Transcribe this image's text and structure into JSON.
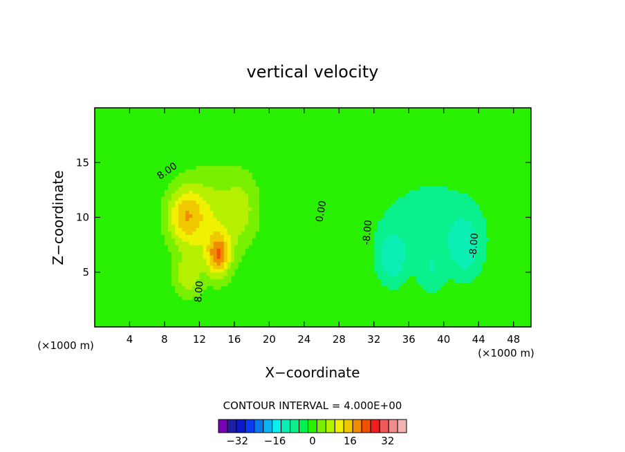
{
  "chart_data": {
    "type": "heatmap",
    "title": "vertical velocity",
    "xlabel": "X−coordinate",
    "ylabel": "Z−coordinate",
    "x_unit": "(×1000 m)",
    "y_unit": "(×1000 m)",
    "xlim": [
      0,
      50
    ],
    "ylim": [
      0,
      20
    ],
    "x_ticks": [
      4,
      8,
      12,
      16,
      20,
      24,
      28,
      32,
      36,
      40,
      44,
      48
    ],
    "y_ticks": [
      5,
      10,
      15
    ],
    "contour_interval_label": "CONTOUR INTERVAL = 4.000E+00",
    "contour_interval": 4,
    "contour_labels": [
      {
        "text": "8.00",
        "x": 8.5,
        "y": 14.0,
        "rotate": -35
      },
      {
        "text": "0.00",
        "x": 26.3,
        "y": 10.5,
        "rotate": -80
      },
      {
        "text": "8.00",
        "x": 12.3,
        "y": 3.2,
        "rotate": -85
      },
      {
        "text": "-8.00",
        "x": 31.6,
        "y": 8.6,
        "rotate": -85
      },
      {
        "text": "-8.00",
        "x": 43.8,
        "y": 7.4,
        "rotate": -85
      }
    ],
    "colorbar": {
      "levels": [
        -40,
        -36,
        -32,
        -28,
        -24,
        -20,
        -16,
        -12,
        -8,
        -4,
        0,
        4,
        8,
        12,
        16,
        20,
        24,
        28,
        32,
        36,
        40
      ],
      "tick_labels": [
        -32,
        -16,
        0,
        16,
        32
      ],
      "colors": [
        "#7a00b4",
        "#1e1ea0",
        "#0a19c8",
        "#0a3cf0",
        "#0a78f0",
        "#0ab4f0",
        "#0af0f0",
        "#0af0b4",
        "#0af08c",
        "#00f050",
        "#28f000",
        "#78f000",
        "#b4f000",
        "#f0f000",
        "#f0c800",
        "#f08c00",
        "#f05000",
        "#f01e1e",
        "#f05a5a",
        "#f08c8c",
        "#f0b4b4"
      ]
    },
    "field": {
      "background_value": 0,
      "updrafts": [
        {
          "x": 10.3,
          "z": 10.2,
          "peak": 14,
          "sx": 2.2,
          "sz": 2.6
        },
        {
          "x": 14.2,
          "z": 6.6,
          "peak": 18,
          "sx": 1.3,
          "sz": 1.9
        },
        {
          "x": 13.0,
          "z": 9.5,
          "peak": 10,
          "sx": 3.8,
          "sz": 5.2
        },
        {
          "x": 17.0,
          "z": 11.0,
          "peak": 7,
          "sx": 2.2,
          "sz": 3.5
        },
        {
          "x": 10.5,
          "z": 4.5,
          "peak": 8,
          "sx": 1.6,
          "sz": 2.0
        }
      ],
      "downdrafts": [
        {
          "x": 38.5,
          "z": 9.5,
          "peak": -6,
          "sx": 7.2,
          "sz": 5.2
        },
        {
          "x": 34.0,
          "z": 6.2,
          "peak": -9,
          "sx": 1.8,
          "sz": 2.6
        },
        {
          "x": 42.5,
          "z": 7.2,
          "peak": -8,
          "sx": 2.0,
          "sz": 3.0
        },
        {
          "x": 38.5,
          "z": 5.0,
          "peak": -5,
          "sx": 1.5,
          "sz": 2.3
        }
      ]
    },
    "grid": false,
    "legend_placement": "bottom-center"
  }
}
